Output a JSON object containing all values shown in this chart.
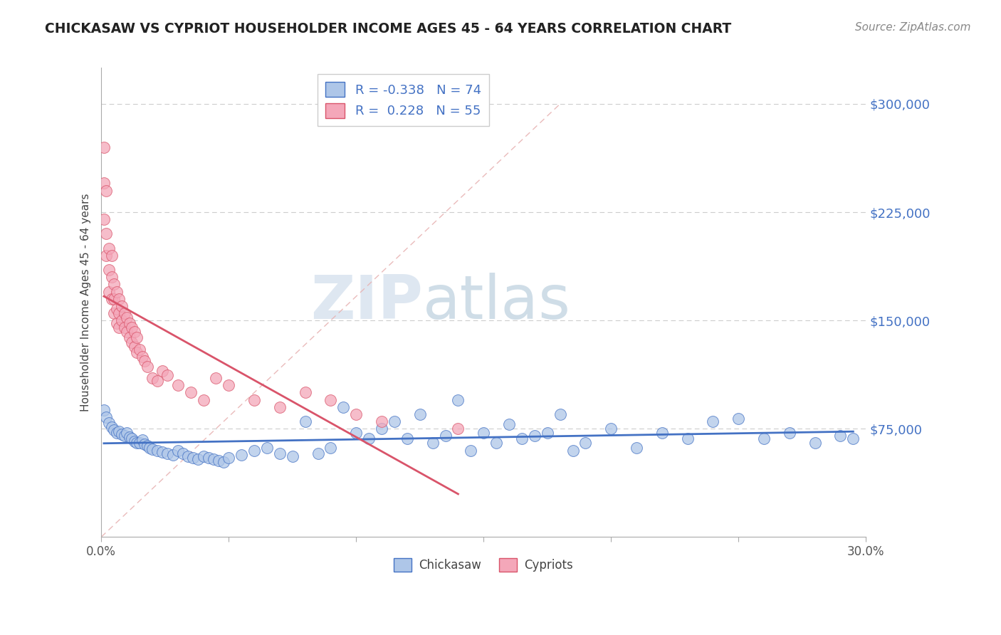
{
  "title": "CHICKASAW VS CYPRIOT HOUSEHOLDER INCOME AGES 45 - 64 YEARS CORRELATION CHART",
  "source": "Source: ZipAtlas.com",
  "ylabel": "Householder Income Ages 45 - 64 years",
  "xlim": [
    0.0,
    0.3
  ],
  "ylim": [
    0,
    325000
  ],
  "xticks": [
    0.0,
    0.05,
    0.1,
    0.15,
    0.2,
    0.25,
    0.3
  ],
  "xticklabels": [
    "0.0%",
    "",
    "",
    "",
    "",
    "",
    "30.0%"
  ],
  "yticks": [
    75000,
    150000,
    225000,
    300000
  ],
  "yticklabels": [
    "$75,000",
    "$150,000",
    "$225,000",
    "$300,000"
  ],
  "chickasaw_R": -0.338,
  "chickasaw_N": 74,
  "cypriot_R": 0.228,
  "cypriot_N": 55,
  "chickasaw_color": "#aec6e8",
  "cypriot_color": "#f4a7b9",
  "chickasaw_line_color": "#4472c4",
  "cypriot_line_color": "#d9546a",
  "ref_line_color": "#e8b4b4",
  "watermark_zip": "ZIP",
  "watermark_atlas": "atlas",
  "background_color": "#ffffff",
  "chickasaw_x": [
    0.001,
    0.002,
    0.003,
    0.004,
    0.005,
    0.006,
    0.007,
    0.008,
    0.009,
    0.01,
    0.011,
    0.012,
    0.013,
    0.014,
    0.015,
    0.016,
    0.017,
    0.018,
    0.019,
    0.02,
    0.022,
    0.024,
    0.026,
    0.028,
    0.03,
    0.032,
    0.034,
    0.036,
    0.038,
    0.04,
    0.042,
    0.044,
    0.046,
    0.048,
    0.05,
    0.055,
    0.06,
    0.065,
    0.07,
    0.075,
    0.08,
    0.085,
    0.09,
    0.095,
    0.1,
    0.105,
    0.11,
    0.115,
    0.12,
    0.125,
    0.13,
    0.135,
    0.14,
    0.145,
    0.15,
    0.155,
    0.16,
    0.165,
    0.17,
    0.175,
    0.18,
    0.185,
    0.19,
    0.2,
    0.21,
    0.22,
    0.23,
    0.24,
    0.25,
    0.26,
    0.27,
    0.28,
    0.29,
    0.295
  ],
  "chickasaw_y": [
    88000,
    83000,
    79000,
    76000,
    74000,
    72000,
    73000,
    71000,
    70000,
    72000,
    69000,
    68000,
    66000,
    65000,
    65000,
    67000,
    64000,
    63000,
    62000,
    61000,
    60000,
    59000,
    58000,
    57000,
    60000,
    58000,
    56000,
    55000,
    54000,
    56000,
    55000,
    54000,
    53000,
    52000,
    55000,
    57000,
    60000,
    62000,
    58000,
    56000,
    80000,
    58000,
    62000,
    90000,
    72000,
    68000,
    75000,
    80000,
    68000,
    85000,
    65000,
    70000,
    95000,
    60000,
    72000,
    65000,
    78000,
    68000,
    70000,
    72000,
    85000,
    60000,
    65000,
    75000,
    62000,
    72000,
    68000,
    80000,
    82000,
    68000,
    72000,
    65000,
    70000,
    68000
  ],
  "cypriot_x": [
    0.001,
    0.001,
    0.001,
    0.002,
    0.002,
    0.002,
    0.003,
    0.003,
    0.003,
    0.004,
    0.004,
    0.004,
    0.005,
    0.005,
    0.005,
    0.006,
    0.006,
    0.006,
    0.007,
    0.007,
    0.007,
    0.008,
    0.008,
    0.009,
    0.009,
    0.01,
    0.01,
    0.011,
    0.011,
    0.012,
    0.012,
    0.013,
    0.013,
    0.014,
    0.014,
    0.015,
    0.016,
    0.017,
    0.018,
    0.02,
    0.022,
    0.024,
    0.026,
    0.03,
    0.035,
    0.04,
    0.045,
    0.05,
    0.06,
    0.07,
    0.08,
    0.09,
    0.1,
    0.11,
    0.14
  ],
  "cypriot_y": [
    270000,
    245000,
    220000,
    240000,
    210000,
    195000,
    200000,
    185000,
    170000,
    195000,
    180000,
    165000,
    175000,
    165000,
    155000,
    170000,
    158000,
    148000,
    165000,
    155000,
    145000,
    160000,
    150000,
    155000,
    145000,
    152000,
    142000,
    148000,
    138000,
    145000,
    135000,
    142000,
    132000,
    138000,
    128000,
    130000,
    125000,
    122000,
    118000,
    110000,
    108000,
    115000,
    112000,
    105000,
    100000,
    95000,
    110000,
    105000,
    95000,
    90000,
    100000,
    95000,
    85000,
    80000,
    75000
  ]
}
